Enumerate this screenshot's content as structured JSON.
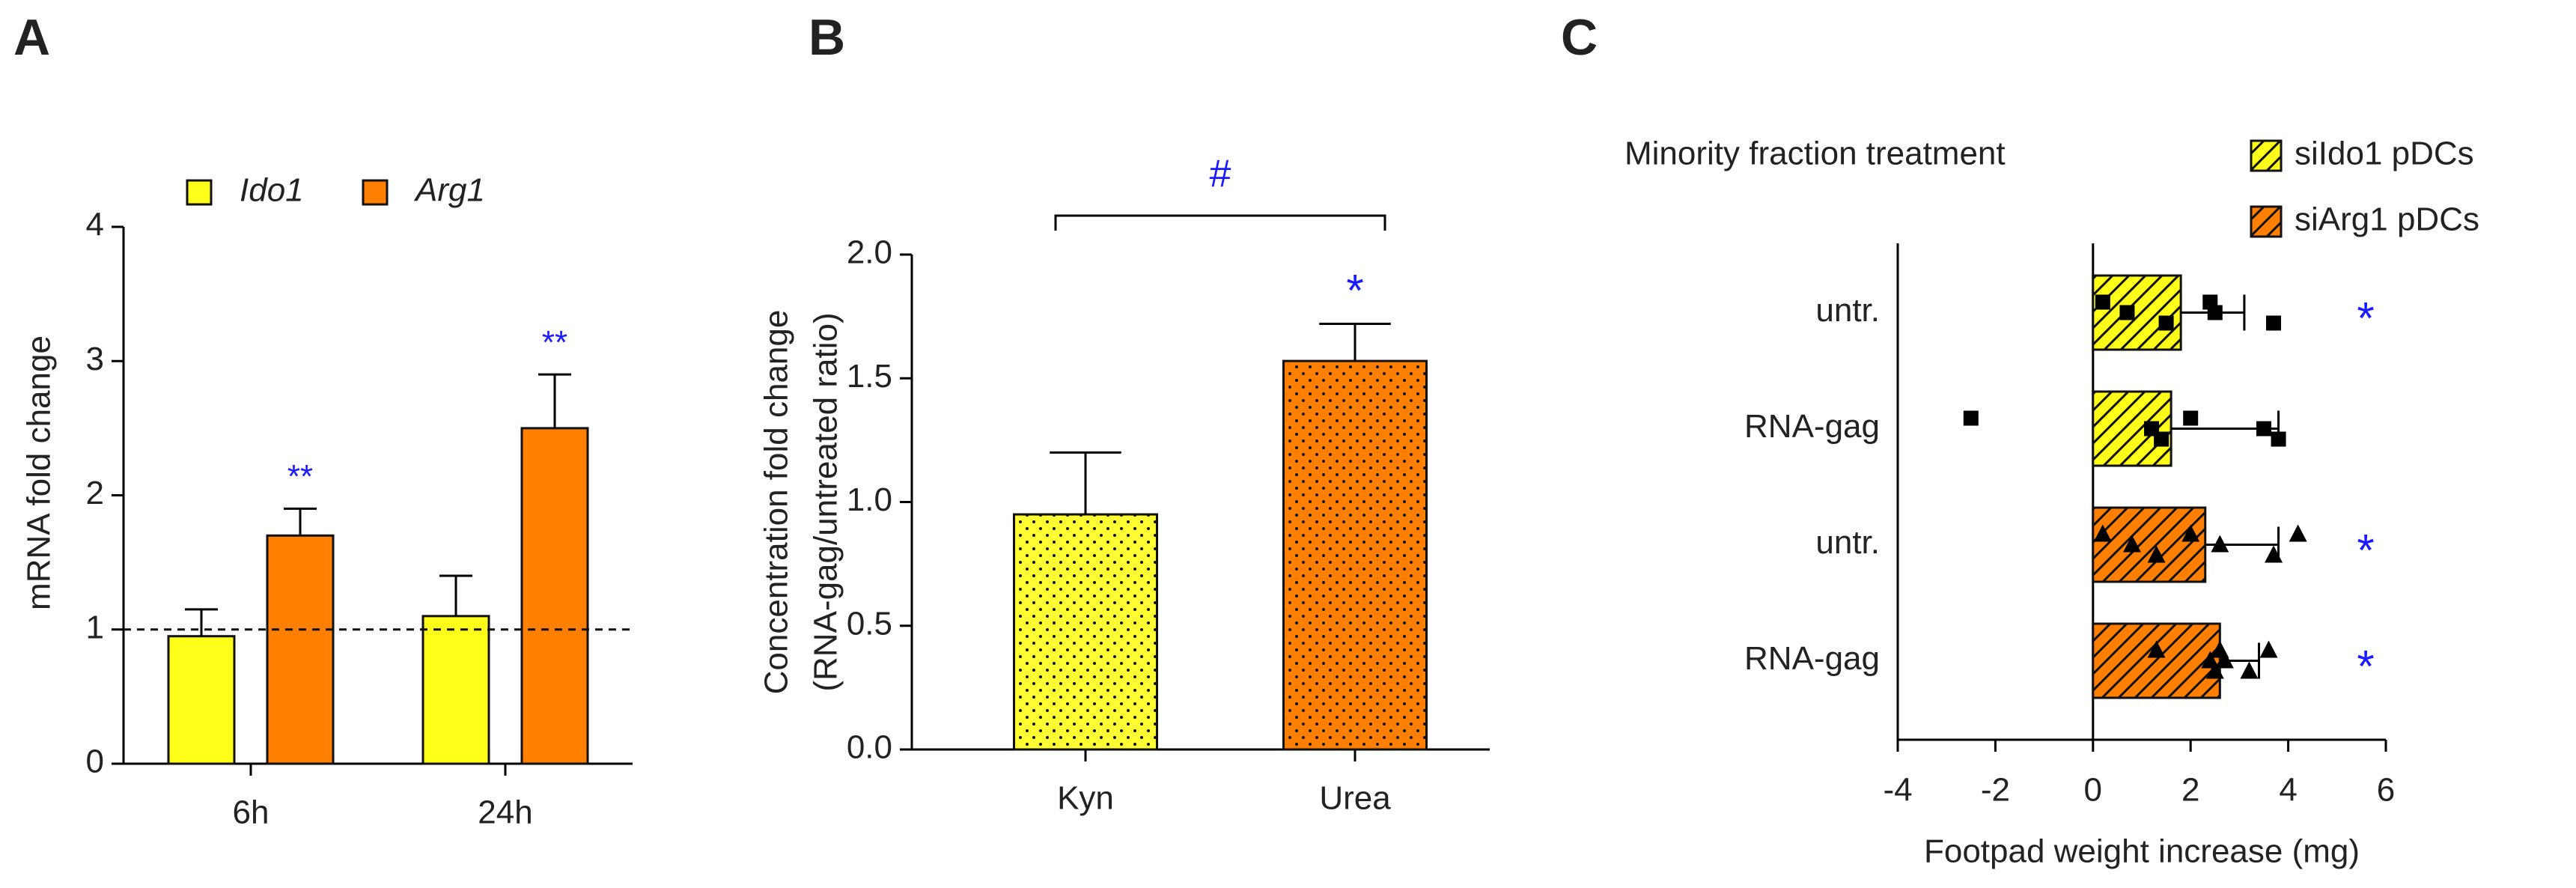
{
  "chart_data": [
    {
      "type": "bar",
      "panel": "A",
      "categories": [
        "6h",
        "24h"
      ],
      "series": [
        {
          "name": "Ido1",
          "color": "#ffff1a",
          "values": [
            0.95,
            1.1
          ],
          "errors": [
            0.2,
            0.3
          ]
        },
        {
          "name": "Arg1",
          "color": "#ff8000",
          "values": [
            1.7,
            2.5
          ],
          "errors": [
            0.2,
            0.4
          ],
          "significance": [
            "**",
            "**"
          ]
        }
      ],
      "ylabel": "mRNA fold change",
      "ylim": [
        0,
        4
      ],
      "yticks": [
        0,
        1,
        2,
        3,
        4
      ],
      "reference_line": 1,
      "legend": "top"
    },
    {
      "type": "bar",
      "panel": "B",
      "categories": [
        "Kyn",
        "Urea"
      ],
      "values": [
        0.95,
        1.57
      ],
      "errors": [
        0.25,
        0.15
      ],
      "colors": [
        "#ffff33",
        "#ff8000"
      ],
      "pattern": "dots",
      "significance": [
        null,
        "*"
      ],
      "bracket_label": "#",
      "ylabel": [
        "Concentration fold change",
        "(RNA-gag/untreated ratio)"
      ],
      "ylim": [
        0,
        2
      ],
      "yticks": [
        {
          "value": 0,
          "label": "0.0"
        },
        0.5,
        {
          "value": 1,
          "label": "1.0"
        },
        1.5,
        {
          "value": 2,
          "label": "2.0"
        }
      ]
    },
    {
      "type": "hbar",
      "panel": "C",
      "title": "Minority fraction treatment",
      "categories": [
        "untr.",
        "RNA-gag",
        "untr.",
        "RNA-gag"
      ],
      "pattern": "hatch",
      "series": [
        {
          "name": "siIdo1 pDCs",
          "color": "#ffff1a",
          "marker": "square",
          "values": [
            1.8,
            1.6,
            null,
            null
          ],
          "errors": [
            1.3,
            2.2,
            null,
            null
          ],
          "points": [
            [
              0.2,
              0.7,
              1.5,
              2.4,
              2.5,
              3.7
            ],
            [
              -2.5,
              1.2,
              1.4,
              2.0,
              3.5,
              3.8
            ],
            null,
            null
          ]
        },
        {
          "name": "siArg1 pDCs",
          "color": "#ff8000",
          "marker": "triangle",
          "values": [
            null,
            null,
            2.3,
            2.6
          ],
          "errors": [
            null,
            null,
            1.5,
            0.8
          ],
          "points": [
            null,
            null,
            [
              0.2,
              0.8,
              1.3,
              2.0,
              2.6,
              3.7,
              4.2
            ],
            [
              1.3,
              2.4,
              2.5,
              2.6,
              2.7,
              3.2,
              3.6
            ]
          ]
        }
      ],
      "significance": [
        "*",
        null,
        "*",
        "*"
      ],
      "xlabel": "Footpad weight increase (mg)",
      "xlim": [
        -4,
        6
      ],
      "xticks": [
        -4,
        -2,
        0,
        2,
        4,
        6
      ],
      "legend": "top right"
    }
  ]
}
